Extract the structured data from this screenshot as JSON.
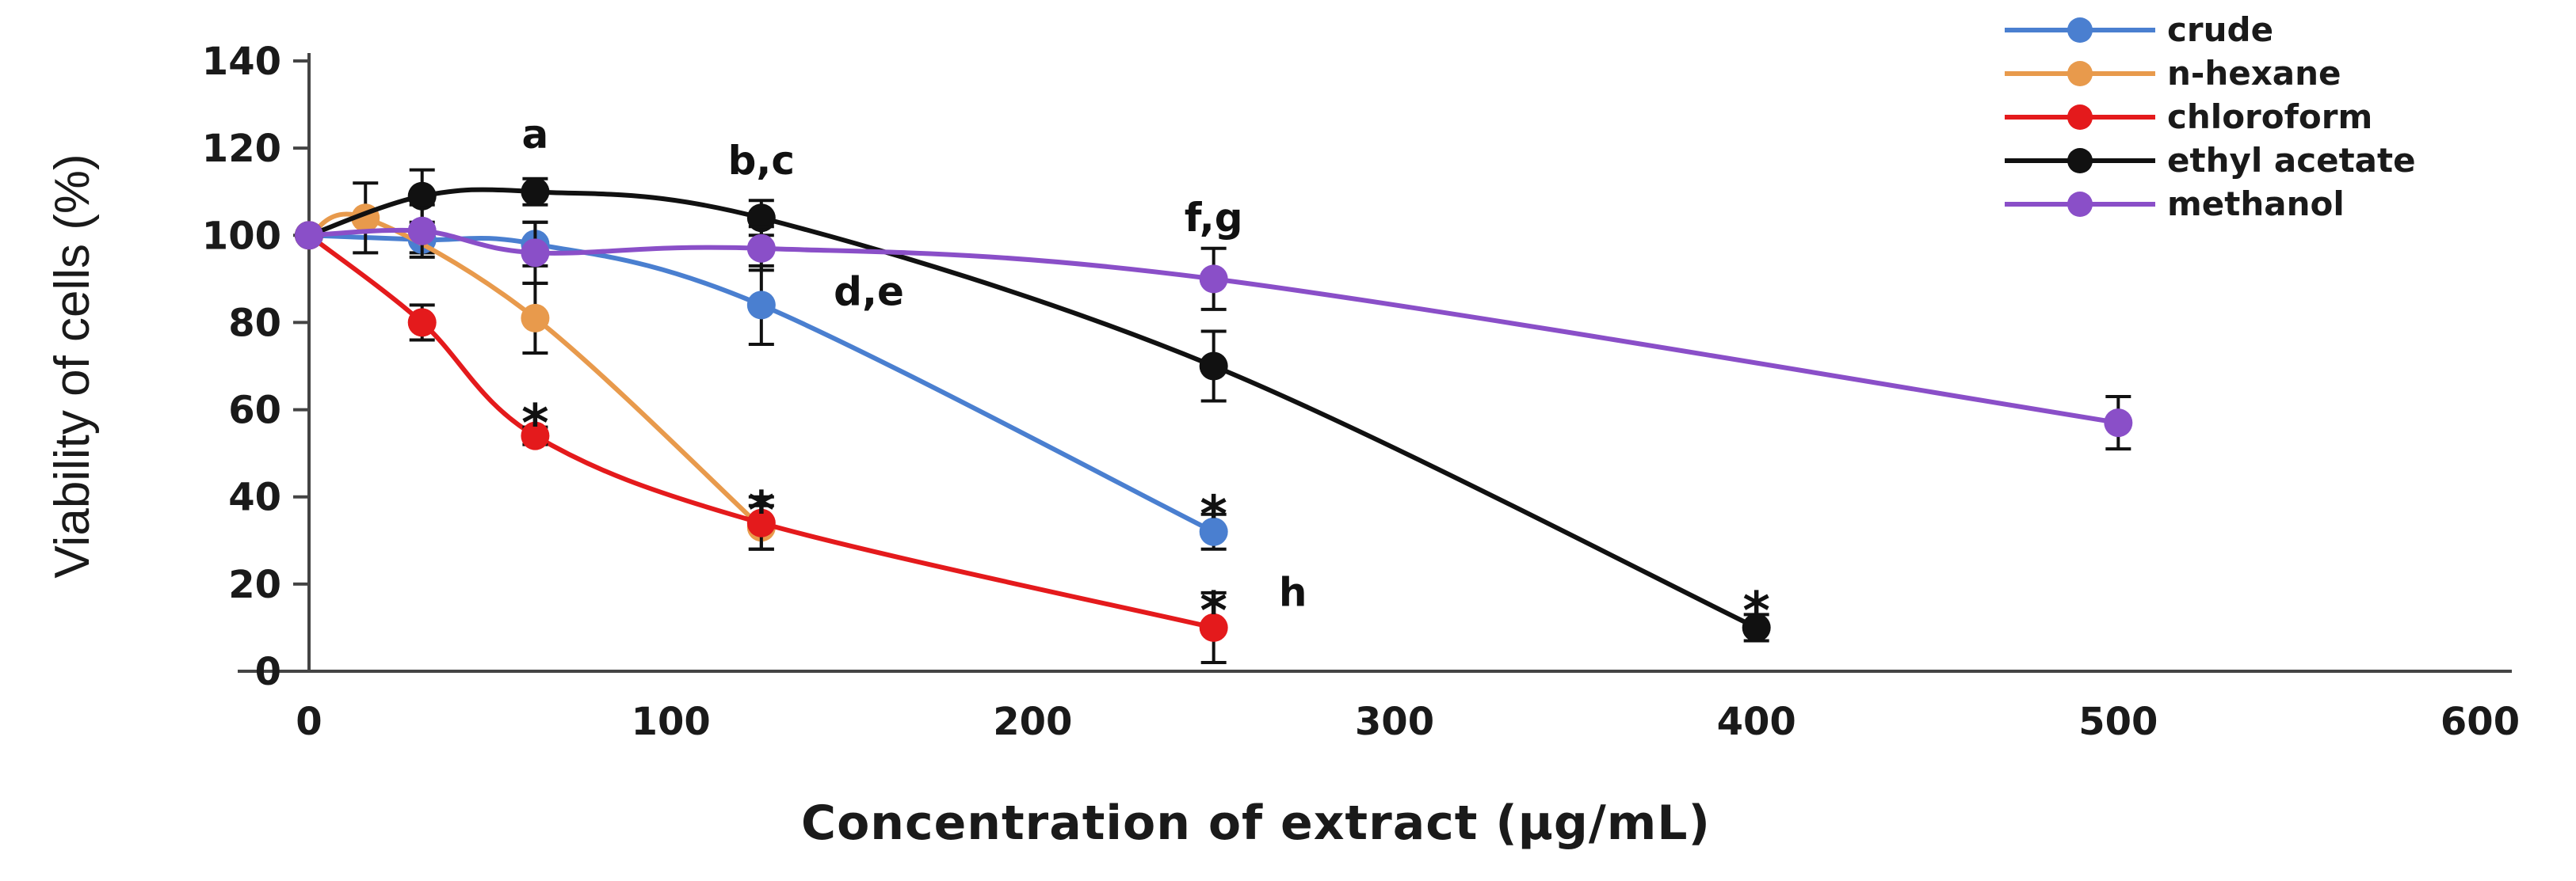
{
  "chart_data": {
    "type": "line",
    "title": "",
    "xlabel": "Concentration of extract (µg/mL)",
    "ylabel": "Viability of cells (%)",
    "xlim": [
      0,
      600
    ],
    "ylim": [
      0,
      140
    ],
    "xticks": [
      0,
      100,
      200,
      300,
      400,
      500,
      600
    ],
    "yticks": [
      0,
      20,
      40,
      60,
      80,
      100,
      120,
      140
    ],
    "grid": false,
    "legend_position": "top-right",
    "series": [
      {
        "name": "crude",
        "color": "#4a7fd0",
        "x": [
          0,
          31.25,
          62.5,
          125,
          250
        ],
        "y": [
          100,
          99,
          98,
          84,
          32
        ],
        "err": [
          0,
          3,
          5,
          9,
          4
        ]
      },
      {
        "name": "n-hexane",
        "color": "#e89a4c",
        "x": [
          0,
          15.6,
          62.5,
          125
        ],
        "y": [
          100,
          104,
          81,
          33
        ],
        "err": [
          0,
          8,
          8,
          5
        ]
      },
      {
        "name": "chloroform",
        "color": "#e41a1c",
        "x": [
          0,
          31.25,
          62.5,
          125,
          250
        ],
        "y": [
          100,
          80,
          54,
          34,
          10
        ],
        "err": [
          0,
          4,
          2,
          6,
          8
        ]
      },
      {
        "name": "ethyl acetate",
        "color": "#111111",
        "x": [
          0,
          31.25,
          62.5,
          125,
          250,
          400
        ],
        "y": [
          100,
          109,
          110,
          104,
          70,
          10
        ],
        "err": [
          0,
          6,
          3,
          4,
          8,
          3
        ]
      },
      {
        "name": "methanol",
        "color": "#8a4fc8",
        "x": [
          0,
          31.25,
          62.5,
          125,
          250,
          500
        ],
        "y": [
          100,
          101,
          96,
          97,
          90,
          57
        ],
        "err": [
          0,
          6,
          7,
          5,
          7,
          6
        ]
      }
    ],
    "annotations": [
      {
        "text": "a",
        "x": 62.5,
        "y": 120
      },
      {
        "text": "b,c",
        "x": 125,
        "y": 114
      },
      {
        "text": "d,e",
        "x": 145,
        "y": 84
      },
      {
        "text": "f,g",
        "x": 250,
        "y": 101
      },
      {
        "text": "*",
        "x": 62.5,
        "y": 60
      },
      {
        "text": "*",
        "x": 125,
        "y": 40
      },
      {
        "text": "*",
        "x": 250,
        "y": 39
      },
      {
        "text": "*",
        "x": 250,
        "y": 17
      },
      {
        "text": "h",
        "x": 268,
        "y": 15
      },
      {
        "text": "*",
        "x": 400,
        "y": 17
      }
    ]
  }
}
